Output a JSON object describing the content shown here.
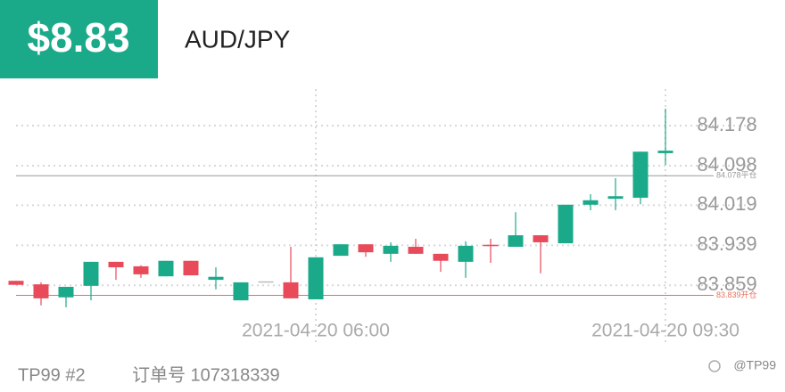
{
  "header": {
    "price": "$8.83",
    "pair": "AUD/JPY"
  },
  "chart_data": {
    "type": "candlestick",
    "categories": [
      null,
      null,
      null,
      null,
      null,
      null,
      null,
      null,
      null,
      null,
      null,
      null,
      "2021-04-20 06:00",
      null,
      null,
      null,
      null,
      null,
      null,
      null,
      null,
      null,
      null,
      null,
      null,
      null,
      "2021-04-20 09:30"
    ],
    "open": [
      83.868,
      83.861,
      83.835,
      83.858,
      83.906,
      83.897,
      83.877,
      83.908,
      83.87,
      83.829,
      83.867,
      83.865,
      83.831,
      83.918,
      83.941,
      83.922,
      83.936,
      83.922,
      83.906,
      83.94,
      83.936,
      83.959,
      83.943,
      84.02,
      84.032,
      84.034,
      84.123
    ],
    "high": [
      83.868,
      83.865,
      83.856,
      83.906,
      83.906,
      83.899,
      83.908,
      83.908,
      83.895,
      83.865,
      83.867,
      83.936,
      83.915,
      83.941,
      83.941,
      83.945,
      83.952,
      83.922,
      83.947,
      83.952,
      84.005,
      83.959,
      84.02,
      84.041,
      84.073,
      84.126,
      84.212
    ],
    "low": [
      83.86,
      83.819,
      83.815,
      83.829,
      83.87,
      83.874,
      83.877,
      83.879,
      83.851,
      83.829,
      83.867,
      83.833,
      83.831,
      83.918,
      83.916,
      83.906,
      83.922,
      83.886,
      83.874,
      83.904,
      83.936,
      83.883,
      83.943,
      84.009,
      84.009,
      84.021,
      84.1
    ],
    "close": [
      83.86,
      83.833,
      83.856,
      83.906,
      83.895,
      83.881,
      83.908,
      83.879,
      83.876,
      83.865,
      83.867,
      83.833,
      83.915,
      83.941,
      83.925,
      83.938,
      83.922,
      83.908,
      83.938,
      83.938,
      83.959,
      83.945,
      84.02,
      84.029,
      84.037,
      84.126,
      84.128
    ],
    "up_color": "#1aaa8a",
    "down_color": "#e84a5a",
    "flat_color": "#bbbbbb",
    "ylim": [
      83.815,
      84.251
    ],
    "yticks": [
      84.178,
      84.098,
      84.019,
      83.939,
      83.859
    ],
    "grid": true,
    "ref_lines": [
      {
        "value": 84.078,
        "label": "84.078平仓",
        "color": "#999999"
      },
      {
        "value": 83.839,
        "label": "83.839开仓",
        "color": "#e8705a"
      }
    ]
  },
  "footer": {
    "account": "TP99 #2",
    "order": "订单号 107318339",
    "watermark": "@TP99"
  }
}
